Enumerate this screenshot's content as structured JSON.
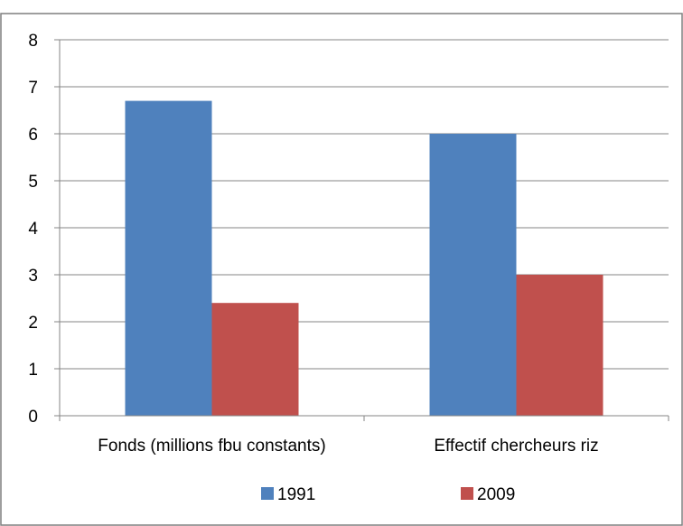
{
  "chart_data": {
    "type": "bar",
    "categories": [
      "Fonds (millions fbu constants)",
      "Effectif chercheurs riz"
    ],
    "series": [
      {
        "name": "1991",
        "values": [
          6.7,
          6.0
        ],
        "color": "#4F81BD"
      },
      {
        "name": "2009",
        "values": [
          2.4,
          3.0
        ],
        "color": "#C0504D"
      }
    ],
    "title": "",
    "xlabel": "",
    "ylabel": "",
    "ylim": [
      0,
      8
    ],
    "yticks": [
      "0",
      "1",
      "2",
      "3",
      "4",
      "5",
      "6",
      "7",
      "8"
    ],
    "grid": true,
    "legend_position": "bottom"
  },
  "colors": {
    "frame_border": "#7F7F7F",
    "gridline": "#868686",
    "axis": "#868686",
    "background": "#FFFFFF"
  }
}
